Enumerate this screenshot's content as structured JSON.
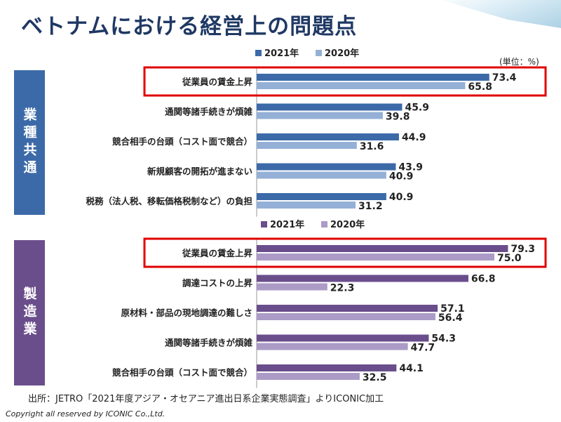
{
  "title": "ベトナムにおける経営上の問題点",
  "unit_note": "(単位：%)",
  "source": "出所：JETRO「2021年度アジア・オセアニア進出日系企業実態調査」よりICONIC加工",
  "copyright": "Copyright all reserved by ICONIC Co.,Ltd.",
  "colors": {
    "title": "#1f3864",
    "common_2021": "#3c6aa8",
    "common_2020": "#95b0d6",
    "mfg_2021": "#6a4e8c",
    "mfg_2020": "#ab9bc6",
    "highlight": "#e00000"
  },
  "chart_data": [
    {
      "type": "bar",
      "orientation": "horizontal",
      "group_label": "業種共通",
      "legend": [
        "2021年",
        "2020年"
      ],
      "legend_placement": "top",
      "categories": [
        "従業員の賃金上昇",
        "通関等諸手続きが煩雑",
        "競合相手の台頭（コスト面で競合）",
        "新規顧客の開拓が進まない",
        "税務（法人税、移転価格税制など）の負担"
      ],
      "series": [
        {
          "name": "2021年",
          "values": [
            73.4,
            45.9,
            44.9,
            43.9,
            40.9
          ]
        },
        {
          "name": "2020年",
          "values": [
            65.8,
            39.8,
            31.6,
            40.9,
            31.2
          ]
        }
      ],
      "highlighted_category": "従業員の賃金上昇"
    },
    {
      "type": "bar",
      "orientation": "horizontal",
      "group_label": "製造業",
      "legend": [
        "2021年",
        "2020年"
      ],
      "legend_placement": "top",
      "categories": [
        "従業員の賃金上昇",
        "調達コストの上昇",
        "原材料・部品の現地調達の難しさ",
        "通関等諸手続きが煩雑",
        "競合相手の台頭（コスト面で競合）"
      ],
      "series": [
        {
          "name": "2021年",
          "values": [
            79.3,
            66.8,
            57.1,
            54.3,
            44.1
          ]
        },
        {
          "name": "2020年",
          "values": [
            75.0,
            22.3,
            56.4,
            47.7,
            32.5
          ]
        }
      ],
      "highlighted_category": "従業員の賃金上昇"
    }
  ]
}
